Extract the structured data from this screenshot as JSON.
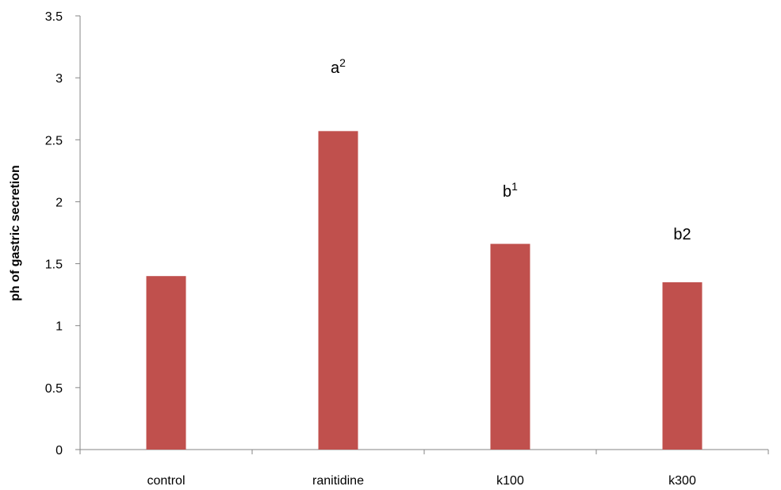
{
  "chart_data": {
    "type": "bar",
    "title": "",
    "xlabel": "",
    "ylabel": "ph of gastric secretion",
    "categories": [
      "control",
      "ranitidine",
      "k100",
      "k300"
    ],
    "values": [
      1.4,
      2.57,
      1.66,
      1.35
    ],
    "annotations": [
      {
        "category": "control",
        "base": "",
        "sup": ""
      },
      {
        "category": "ranitidine",
        "base": "a",
        "sup": "2"
      },
      {
        "category": "k100",
        "base": "b",
        "sup": "1"
      },
      {
        "category": "k300",
        "base": "b2",
        "sup": ""
      }
    ],
    "ylim": [
      0,
      3.5
    ],
    "yticks": [
      "0",
      "0.5",
      "1",
      "1.5",
      "2",
      "2.5",
      "3",
      "3.5"
    ],
    "grid": false,
    "legend": "none",
    "bar_color": "#C0504D",
    "axis_color": "#868686"
  }
}
